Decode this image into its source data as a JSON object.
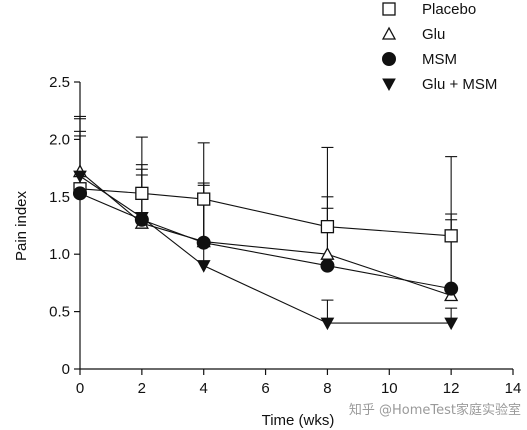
{
  "chart_data": {
    "type": "line",
    "xlabel": "Time (wks)",
    "ylabel": "Pain index",
    "xlim": [
      0,
      14
    ],
    "ylim": [
      0,
      2.5
    ],
    "xticks": [
      0,
      2,
      4,
      6,
      8,
      10,
      12,
      14
    ],
    "yticks": [
      0,
      0.5,
      1.0,
      1.5,
      2.0,
      2.5
    ],
    "xtick_labels": [
      "0",
      "2",
      "4",
      "6",
      "8",
      "10",
      "12",
      "14"
    ],
    "ytick_labels": [
      "0",
      "0.5",
      "1.0",
      "1.5",
      "2.0",
      "2.5"
    ],
    "grid": false,
    "legend_position": "top-right",
    "error_bars": "upper",
    "series": [
      {
        "name": "Placebo",
        "marker": "open-square",
        "x": [
          0,
          2,
          4,
          8,
          12
        ],
        "y": [
          1.57,
          1.53,
          1.48,
          1.24,
          1.16
        ],
        "err_upper": [
          2.03,
          2.02,
          1.97,
          1.93,
          1.85
        ]
      },
      {
        "name": "Glu",
        "marker": "open-triangle-up",
        "x": [
          0,
          2,
          4,
          8,
          12
        ],
        "y": [
          1.72,
          1.27,
          1.11,
          1.0,
          0.64
        ],
        "err_upper": [
          2.2,
          1.78,
          1.62,
          1.5,
          1.35
        ]
      },
      {
        "name": "MSM",
        "marker": "filled-circle",
        "x": [
          0,
          2,
          4,
          8,
          12
        ],
        "y": [
          1.53,
          1.3,
          1.1,
          0.9,
          0.7
        ],
        "err_upper": [
          2.07,
          1.74,
          1.6,
          1.4,
          1.3
        ]
      },
      {
        "name": "Glu + MSM",
        "marker": "filled-triangle-down",
        "x": [
          0,
          2,
          4,
          8,
          12
        ],
        "y": [
          1.68,
          1.32,
          0.9,
          0.4,
          0.4
        ],
        "err_upper": [
          2.18,
          1.69,
          1.52,
          0.6,
          0.53
        ]
      }
    ]
  },
  "watermark": "知乎 @HomeTest家庭实验室"
}
